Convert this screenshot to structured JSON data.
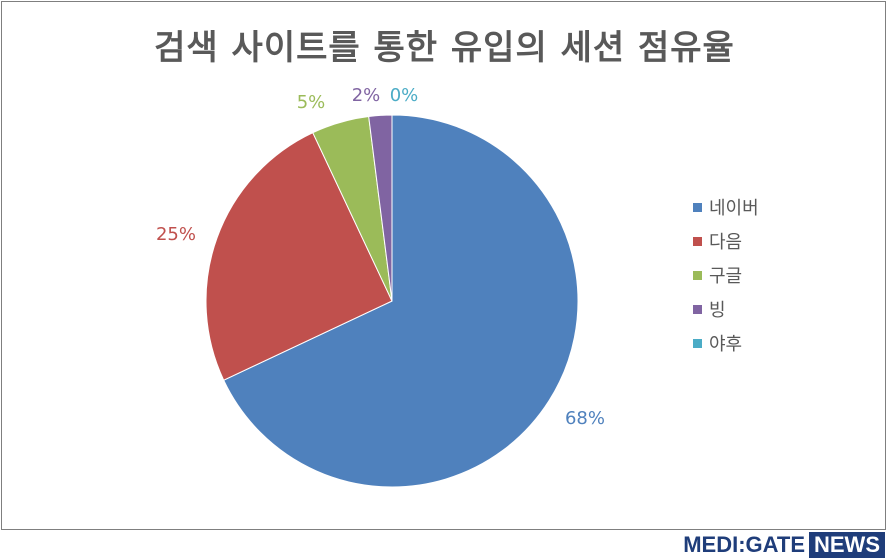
{
  "chart_data": {
    "type": "pie",
    "title": "검색 사이트를 통한 유입의 세션 점유율",
    "series": [
      {
        "name": "네이버",
        "value": 68,
        "label": "68%",
        "color": "#4f81bd"
      },
      {
        "name": "다음",
        "value": 25,
        "label": "25%",
        "color": "#c0504d"
      },
      {
        "name": "구글",
        "value": 5,
        "label": "5%",
        "color": "#9bbb59"
      },
      {
        "name": "빙",
        "value": 2,
        "label": "2%",
        "color": "#8064a2"
      },
      {
        "name": "야후",
        "value": 0,
        "label": "0%",
        "color": "#4bacc6"
      }
    ],
    "legend_position": "right"
  },
  "branding": {
    "logo_main": "MEDI:GATE",
    "logo_box": "NEWS"
  }
}
